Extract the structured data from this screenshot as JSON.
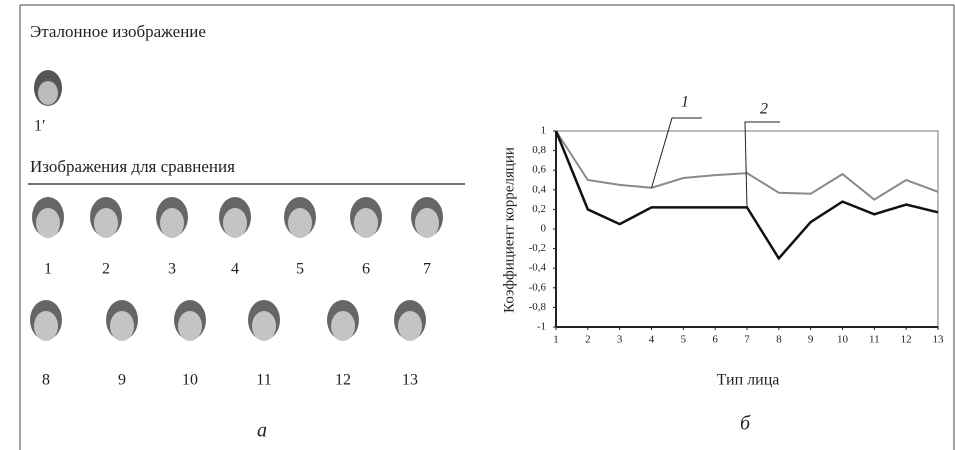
{
  "left": {
    "reference_heading": "Эталонное изображение",
    "reference_label": "1′",
    "comparison_heading": "Изображения для сравнения",
    "faces": [
      "1",
      "2",
      "3",
      "4",
      "5",
      "6",
      "7",
      "8",
      "9",
      "10",
      "11",
      "12",
      "13"
    ],
    "panel_label": "а"
  },
  "chart_data": {
    "type": "line",
    "panel_label": "б",
    "x_label": "Тип лица",
    "y_label": "Коэффициент корреляции",
    "x": [
      1,
      2,
      3,
      4,
      5,
      6,
      7,
      8,
      9,
      10,
      11,
      12,
      13
    ],
    "series": [
      {
        "name": "1",
        "color": "#8a8a8a",
        "values": [
          1,
          0.5,
          0.45,
          0.42,
          0.52,
          0.55,
          0.57,
          0.37,
          0.36,
          0.56,
          0.3,
          0.5,
          0.38
        ]
      },
      {
        "name": "2",
        "color": "#111111",
        "values": [
          1,
          0.2,
          0.05,
          0.22,
          0.22,
          0.22,
          0.22,
          -0.3,
          0.07,
          0.28,
          0.15,
          0.25,
          0.17
        ]
      }
    ],
    "xlim": [
      1,
      13
    ],
    "xticks": [
      1,
      2,
      3,
      4,
      5,
      6,
      7,
      8,
      9,
      10,
      11,
      12,
      13
    ],
    "ylim": [
      -1,
      1
    ],
    "yticks": [
      1,
      {
        "value": 0.8,
        "label": "0,8"
      },
      {
        "value": 0.6,
        "label": "0,6"
      },
      {
        "value": 0.4,
        "label": "0,4"
      },
      {
        "value": 0.2,
        "label": "0,2"
      },
      0,
      {
        "value": -0.2,
        "label": "-0,2"
      },
      {
        "value": -0.4,
        "label": "-0,4"
      },
      {
        "value": -0.6,
        "label": "-0,6"
      },
      {
        "value": -0.8,
        "label": "-0,8"
      },
      -1
    ]
  }
}
